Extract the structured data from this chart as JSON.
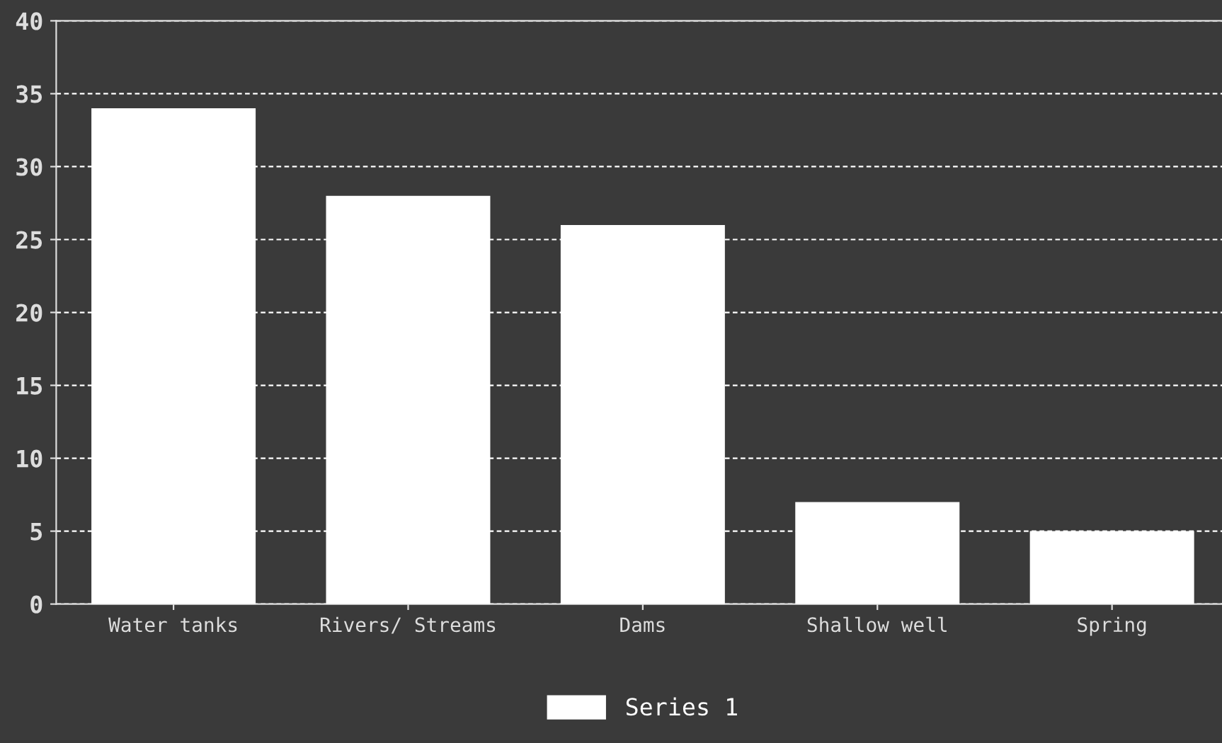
{
  "chart_data": {
    "type": "bar",
    "categories": [
      "Water tanks",
      "Rivers/ Streams",
      "Dams",
      "Shallow well",
      "Spring"
    ],
    "series": [
      {
        "name": "Series 1",
        "color": "#ffffff",
        "values": [
          34,
          28,
          26,
          7,
          5
        ]
      }
    ],
    "ylim": [
      0,
      40
    ],
    "yticks": [
      0,
      5,
      10,
      15,
      20,
      25,
      30,
      35,
      40
    ],
    "grid": "y",
    "legend": "bottom"
  }
}
